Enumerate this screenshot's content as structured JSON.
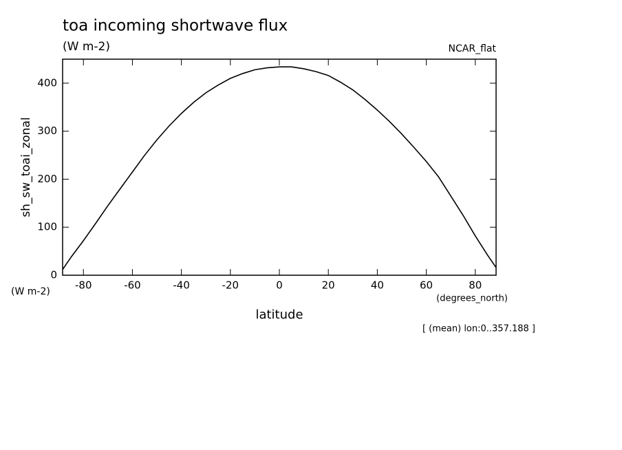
{
  "chart_data": {
    "type": "line",
    "title": "toa incoming shortwave flux",
    "subtitle": "(W m-2)",
    "dataset": "NCAR_flat",
    "y_label": "sh_sw_toai_zonal",
    "y_units": "(W m-2)",
    "x_label": "latitude",
    "x_units": "(degrees_north)",
    "annotation": "[ (mean) lon:0..357.188 ]",
    "x": [
      -88.5,
      -85,
      -80,
      -75,
      -70,
      -65,
      -60,
      -55,
      -50,
      -45,
      -40,
      -35,
      -30,
      -25,
      -20,
      -15,
      -10,
      -5,
      0,
      5,
      10,
      15,
      20,
      25,
      30,
      35,
      40,
      45,
      50,
      55,
      60,
      65,
      70,
      75,
      80,
      85,
      88.5
    ],
    "series": [
      {
        "name": "sh_sw_toai_zonal",
        "color": "#000000",
        "values": [
          12,
          38,
          72,
          108,
          145,
          180,
          215,
          250,
          282,
          311,
          337,
          360,
          380,
          396,
          410,
          420,
          428,
          432,
          434,
          434,
          430,
          424,
          416,
          402,
          386,
          366,
          344,
          320,
          294,
          266,
          237,
          205,
          165,
          125,
          82,
          42,
          16
        ]
      }
    ],
    "xlim": [
      -88.5,
      88.5
    ],
    "xticks": [
      -80,
      -60,
      -40,
      -20,
      0,
      20,
      40,
      60,
      80
    ],
    "ylim": [
      0,
      450
    ],
    "yticks": [
      0,
      100,
      200,
      300,
      400
    ]
  }
}
